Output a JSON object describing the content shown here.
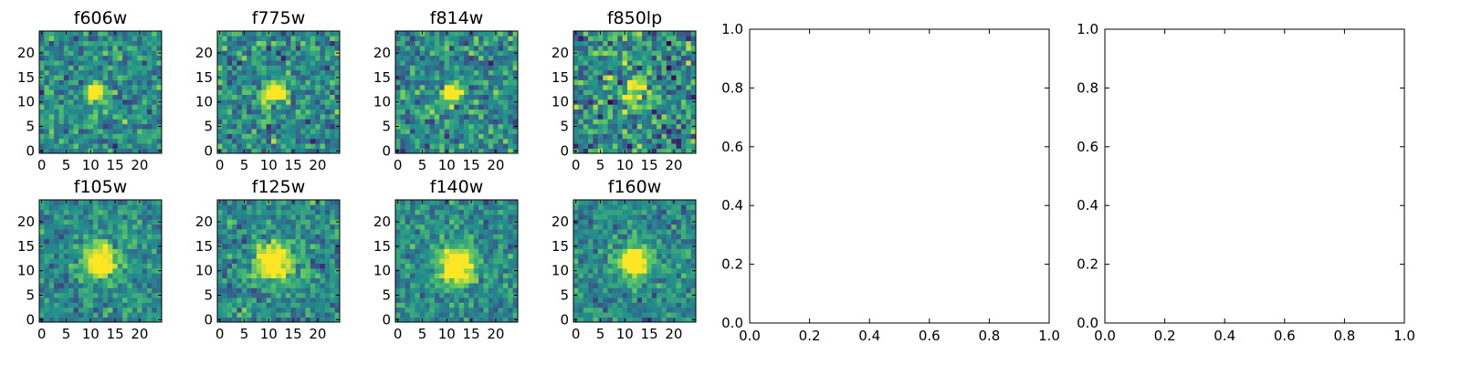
{
  "colormap": [
    "#440154",
    "#3b528b",
    "#21918c",
    "#5ec962",
    "#fde725"
  ],
  "chart_data": [
    {
      "type": "heatmap",
      "title": "f606w",
      "grid_size": 25,
      "xlim": [
        0,
        24
      ],
      "ylim": [
        0,
        24
      ],
      "xticks": [
        "0",
        "5",
        "10",
        "15",
        "20"
      ],
      "yticks": [
        "0",
        "5",
        "10",
        "15",
        "20"
      ],
      "source": {
        "x": 11,
        "y": 12,
        "brightness": 1.0,
        "width": 1.3
      },
      "noise": 0.55,
      "seed": 11
    },
    {
      "type": "heatmap",
      "title": "f775w",
      "grid_size": 25,
      "xlim": [
        0,
        24
      ],
      "ylim": [
        0,
        24
      ],
      "xticks": [
        "0",
        "5",
        "10",
        "15",
        "20"
      ],
      "yticks": [
        "0",
        "5",
        "10",
        "15",
        "20"
      ],
      "source": {
        "x": 11,
        "y": 12,
        "brightness": 0.9,
        "width": 1.5
      },
      "noise": 0.6,
      "seed": 23
    },
    {
      "type": "heatmap",
      "title": "f814w",
      "grid_size": 25,
      "xlim": [
        0,
        24
      ],
      "ylim": [
        0,
        24
      ],
      "xticks": [
        "0",
        "5",
        "10",
        "15",
        "20"
      ],
      "yticks": [
        "0",
        "5",
        "10",
        "15",
        "20"
      ],
      "source": {
        "x": 11,
        "y": 12,
        "brightness": 0.95,
        "width": 1.3
      },
      "noise": 0.6,
      "seed": 37
    },
    {
      "type": "heatmap",
      "title": "f850lp",
      "grid_size": 25,
      "xlim": [
        0,
        24
      ],
      "ylim": [
        0,
        24
      ],
      "xticks": [
        "0",
        "5",
        "10",
        "15",
        "20"
      ],
      "yticks": [
        "0",
        "5",
        "10",
        "15",
        "20"
      ],
      "source": {
        "x": 12,
        "y": 12,
        "brightness": 0.7,
        "width": 1.6
      },
      "noise": 0.75,
      "seed": 41
    },
    {
      "type": "heatmap",
      "title": "f105w",
      "grid_size": 25,
      "xlim": [
        0,
        24
      ],
      "ylim": [
        0,
        24
      ],
      "xticks": [
        "0",
        "5",
        "10",
        "15",
        "20"
      ],
      "yticks": [
        "0",
        "5",
        "10",
        "15",
        "20"
      ],
      "source": {
        "x": 12,
        "y": 12,
        "brightness": 0.9,
        "width": 2.3
      },
      "noise": 0.45,
      "seed": 53
    },
    {
      "type": "heatmap",
      "title": "f125w",
      "grid_size": 25,
      "xlim": [
        0,
        24
      ],
      "ylim": [
        0,
        24
      ],
      "xticks": [
        "0",
        "5",
        "10",
        "15",
        "20"
      ],
      "yticks": [
        "0",
        "5",
        "10",
        "15",
        "20"
      ],
      "source": {
        "x": 11,
        "y": 12,
        "brightness": 0.9,
        "width": 2.6
      },
      "noise": 0.5,
      "seed": 67
    },
    {
      "type": "heatmap",
      "title": "f140w",
      "grid_size": 25,
      "xlim": [
        0,
        24
      ],
      "ylim": [
        0,
        24
      ],
      "xticks": [
        "0",
        "5",
        "10",
        "15",
        "20"
      ],
      "yticks": [
        "0",
        "5",
        "10",
        "15",
        "20"
      ],
      "source": {
        "x": 12,
        "y": 11,
        "brightness": 0.95,
        "width": 2.4
      },
      "noise": 0.45,
      "seed": 79
    },
    {
      "type": "heatmap",
      "title": "f160w",
      "grid_size": 25,
      "xlim": [
        0,
        24
      ],
      "ylim": [
        0,
        24
      ],
      "xticks": [
        "0",
        "5",
        "10",
        "15",
        "20"
      ],
      "yticks": [
        "0",
        "5",
        "10",
        "15",
        "20"
      ],
      "source": {
        "x": 12,
        "y": 12,
        "brightness": 0.95,
        "width": 2.1
      },
      "noise": 0.45,
      "seed": 83
    },
    {
      "type": "line",
      "title": "",
      "series": [],
      "xlim": [
        0.0,
        1.0
      ],
      "ylim": [
        0.0,
        1.0
      ],
      "xticks": [
        "0.0",
        "0.2",
        "0.4",
        "0.6",
        "0.8",
        "1.0"
      ],
      "yticks": [
        "0.0",
        "0.2",
        "0.4",
        "0.6",
        "0.8",
        "1.0"
      ]
    },
    {
      "type": "line",
      "title": "",
      "series": [],
      "xlim": [
        0.0,
        1.0
      ],
      "ylim": [
        0.0,
        1.0
      ],
      "xticks": [
        "0.0",
        "0.2",
        "0.4",
        "0.6",
        "0.8",
        "1.0"
      ],
      "yticks": [
        "0.0",
        "0.2",
        "0.4",
        "0.6",
        "0.8",
        "1.0"
      ]
    }
  ]
}
